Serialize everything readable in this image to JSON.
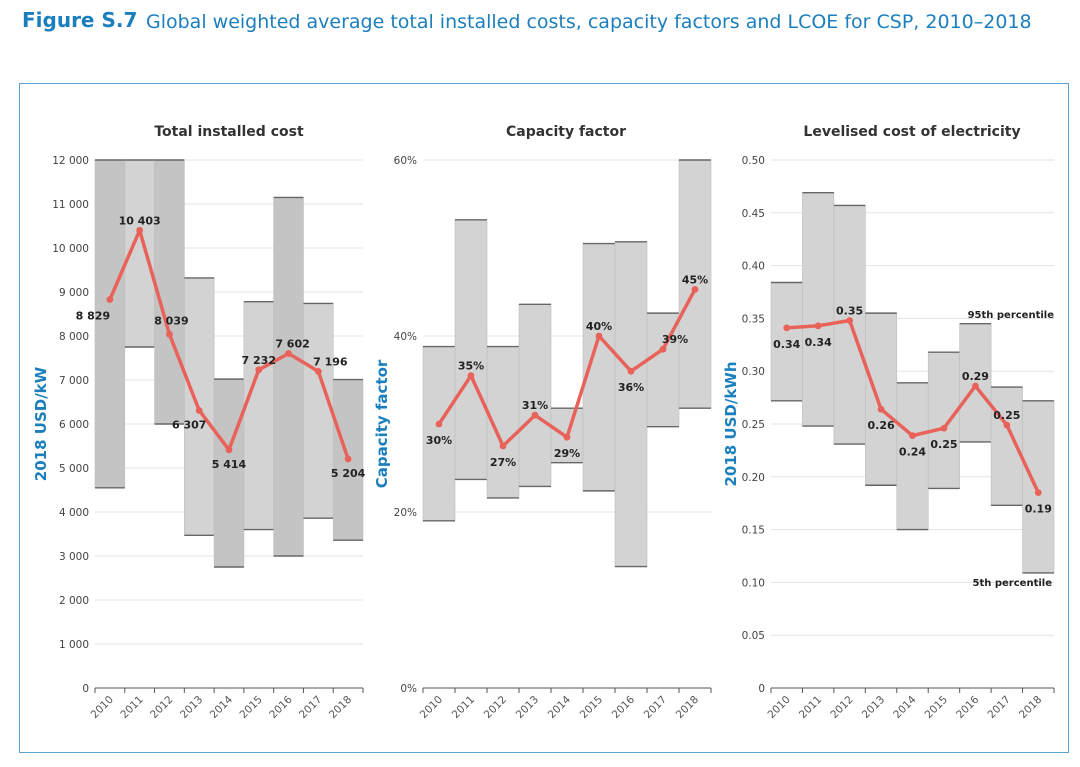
{
  "figure": {
    "label": "Figure S.7",
    "title": "Global weighted average total installed costs, capacity factors and LCOE for CSP, 2010–2018"
  },
  "colors": {
    "accent": "#1b7fbd",
    "line": "#e8625a",
    "band_fill": "#d3d3d3",
    "band_alt_fill": "#c4c4c4",
    "gridline": "#e3e3e3"
  },
  "chart_data": [
    {
      "type": "line",
      "title": "Total installed cost",
      "ylabel": "2018 USD/kW",
      "xlabel": "",
      "ylim": [
        0,
        12000
      ],
      "yticks": [
        0,
        1000,
        2000,
        3000,
        4000,
        5000,
        6000,
        7000,
        8000,
        9000,
        10000,
        11000,
        12000
      ],
      "ytick_labels": [
        "0",
        "1 000",
        "2 000",
        "3 000",
        "4 000",
        "5 000",
        "6 000",
        "7 000",
        "8 000",
        "9 000",
        "10 000",
        "11 000",
        "12 000"
      ],
      "grid": true,
      "categories": [
        "2010",
        "2011",
        "2012",
        "2013",
        "2014",
        "2015",
        "2016",
        "2017",
        "2018"
      ],
      "series": [
        {
          "values": [
            8829,
            10403,
            8039,
            6307,
            5414,
            7232,
            7602,
            7196,
            5204
          ],
          "labels": [
            "8 829",
            "10 403",
            "8 039",
            "6 307",
            "5 414",
            "7 232",
            "7 602",
            "7 196",
            "5 204"
          ]
        }
      ],
      "bands": {
        "p5": [
          4550,
          7750,
          6000,
          3470,
          2750,
          3600,
          3000,
          3860,
          3360
        ],
        "p95": [
          12000,
          12000,
          12000,
          9320,
          7020,
          8780,
          11150,
          8740,
          7010
        ]
      }
    },
    {
      "type": "line",
      "title": "Capacity factor",
      "ylabel": "Capacity factor",
      "xlabel": "",
      "ylim": [
        0,
        0.6
      ],
      "yticks": [
        0,
        0.2,
        0.4,
        0.6
      ],
      "ytick_labels": [
        "0%",
        "20%",
        "40%",
        "60%"
      ],
      "grid": true,
      "categories": [
        "2010",
        "2011",
        "2012",
        "2013",
        "2014",
        "2015",
        "2016",
        "2017",
        "2018"
      ],
      "series": [
        {
          "values": [
            0.3,
            0.355,
            0.275,
            0.31,
            0.285,
            0.4,
            0.36,
            0.385,
            0.453
          ],
          "labels": [
            "30%",
            "35%",
            "27%",
            "31%",
            "29%",
            "40%",
            "36%",
            "39%",
            "45%"
          ]
        }
      ],
      "bands": {
        "p5": [
          0.19,
          0.237,
          0.216,
          0.229,
          0.256,
          0.224,
          0.138,
          0.297,
          0.318
        ],
        "p95": [
          0.388,
          0.532,
          0.388,
          0.436,
          0.318,
          0.505,
          0.507,
          0.426,
          0.6
        ]
      }
    },
    {
      "type": "line",
      "title": "Levelised cost of electricity",
      "ylabel": "2018 USD/kWh",
      "xlabel": "",
      "ylim": [
        0,
        0.5
      ],
      "yticks": [
        0,
        0.05,
        0.1,
        0.15,
        0.2,
        0.25,
        0.3,
        0.35,
        0.4,
        0.45,
        0.5
      ],
      "ytick_labels": [
        "0",
        "0.05",
        "0.10",
        "0.15",
        "0.20",
        "0.25",
        "0.30",
        "0.35",
        "0.40",
        "0.45",
        "0.50"
      ],
      "grid": true,
      "categories": [
        "2010",
        "2011",
        "2012",
        "2013",
        "2014",
        "2015",
        "2016",
        "2017",
        "2018"
      ],
      "series": [
        {
          "values": [
            0.341,
            0.343,
            0.348,
            0.264,
            0.239,
            0.246,
            0.286,
            0.249,
            0.185
          ],
          "labels": [
            "0.34",
            "0.34",
            "0.35",
            "0.26",
            "0.24",
            "0.25",
            "0.29",
            "0.25",
            "0.19"
          ]
        }
      ],
      "bands": {
        "p5": [
          0.272,
          0.248,
          0.231,
          0.192,
          0.15,
          0.189,
          0.233,
          0.173,
          0.109
        ],
        "p95": [
          0.384,
          0.469,
          0.457,
          0.355,
          0.289,
          0.318,
          0.345,
          0.285,
          0.272
        ]
      },
      "annotations": {
        "p95": "95th percentile",
        "p5": "5th percentile"
      }
    }
  ]
}
